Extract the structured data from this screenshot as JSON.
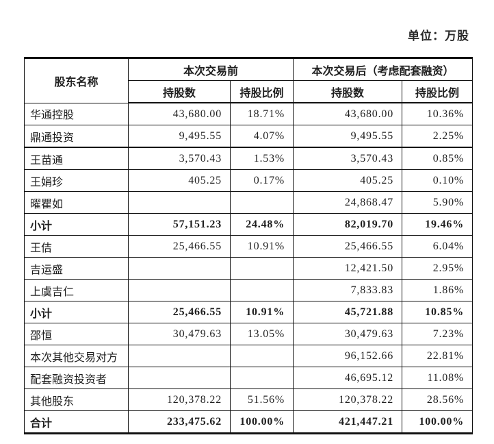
{
  "unit_label": "单位：万股",
  "table": {
    "header": {
      "shareholder": "股东名称",
      "group_before": "本次交易前",
      "group_after": "本次交易后（考虑配套融资）",
      "shares": "持股数",
      "ratio": "持股比例"
    },
    "rows": [
      {
        "name": "华通控股",
        "b_shares": "43,680.00",
        "b_ratio": "18.71%",
        "a_shares": "43,680.00",
        "a_ratio": "10.36%"
      },
      {
        "name": "鼎通投资",
        "b_shares": "9,495.55",
        "b_ratio": "4.07%",
        "a_shares": "9,495.55",
        "a_ratio": "2.25%"
      },
      {
        "name": "王苗通",
        "b_shares": "3,570.43",
        "b_ratio": "1.53%",
        "a_shares": "3,570.43",
        "a_ratio": "0.85%"
      },
      {
        "name": "王娟珍",
        "b_shares": "405.25",
        "b_ratio": "0.17%",
        "a_shares": "405.25",
        "a_ratio": "0.10%"
      },
      {
        "name": "曜瞿如",
        "b_shares": "",
        "b_ratio": "",
        "a_shares": "24,868.47",
        "a_ratio": "5.90%"
      },
      {
        "name": "小计",
        "b_shares": "57,151.23",
        "b_ratio": "24.48%",
        "a_shares": "82,019.70",
        "a_ratio": "19.46%"
      },
      {
        "name": "王佶",
        "b_shares": "25,466.55",
        "b_ratio": "10.91%",
        "a_shares": "25,466.55",
        "a_ratio": "6.04%"
      },
      {
        "name": "吉运盛",
        "b_shares": "",
        "b_ratio": "",
        "a_shares": "12,421.50",
        "a_ratio": "2.95%"
      },
      {
        "name": "上虞吉仁",
        "b_shares": "",
        "b_ratio": "",
        "a_shares": "7,833.83",
        "a_ratio": "1.86%"
      },
      {
        "name": "小计",
        "b_shares": "25,466.55",
        "b_ratio": "10.91%",
        "a_shares": "45,721.88",
        "a_ratio": "10.85%"
      },
      {
        "name": "邵恒",
        "b_shares": "30,479.63",
        "b_ratio": "13.05%",
        "a_shares": "30,479.63",
        "a_ratio": "7.23%"
      },
      {
        "name": "本次其他交易对方",
        "b_shares": "",
        "b_ratio": "",
        "a_shares": "96,152.66",
        "a_ratio": "22.81%"
      },
      {
        "name": "配套融资投资者",
        "b_shares": "",
        "b_ratio": "",
        "a_shares": "46,695.12",
        "a_ratio": "11.08%"
      },
      {
        "name": "其他股东",
        "b_shares": "120,378.22",
        "b_ratio": "51.56%",
        "a_shares": "120,378.22",
        "a_ratio": "28.56%"
      },
      {
        "name": "合计",
        "b_shares": "233,475.62",
        "b_ratio": "100.00%",
        "a_shares": "421,447.21",
        "a_ratio": "100.00%"
      }
    ]
  }
}
